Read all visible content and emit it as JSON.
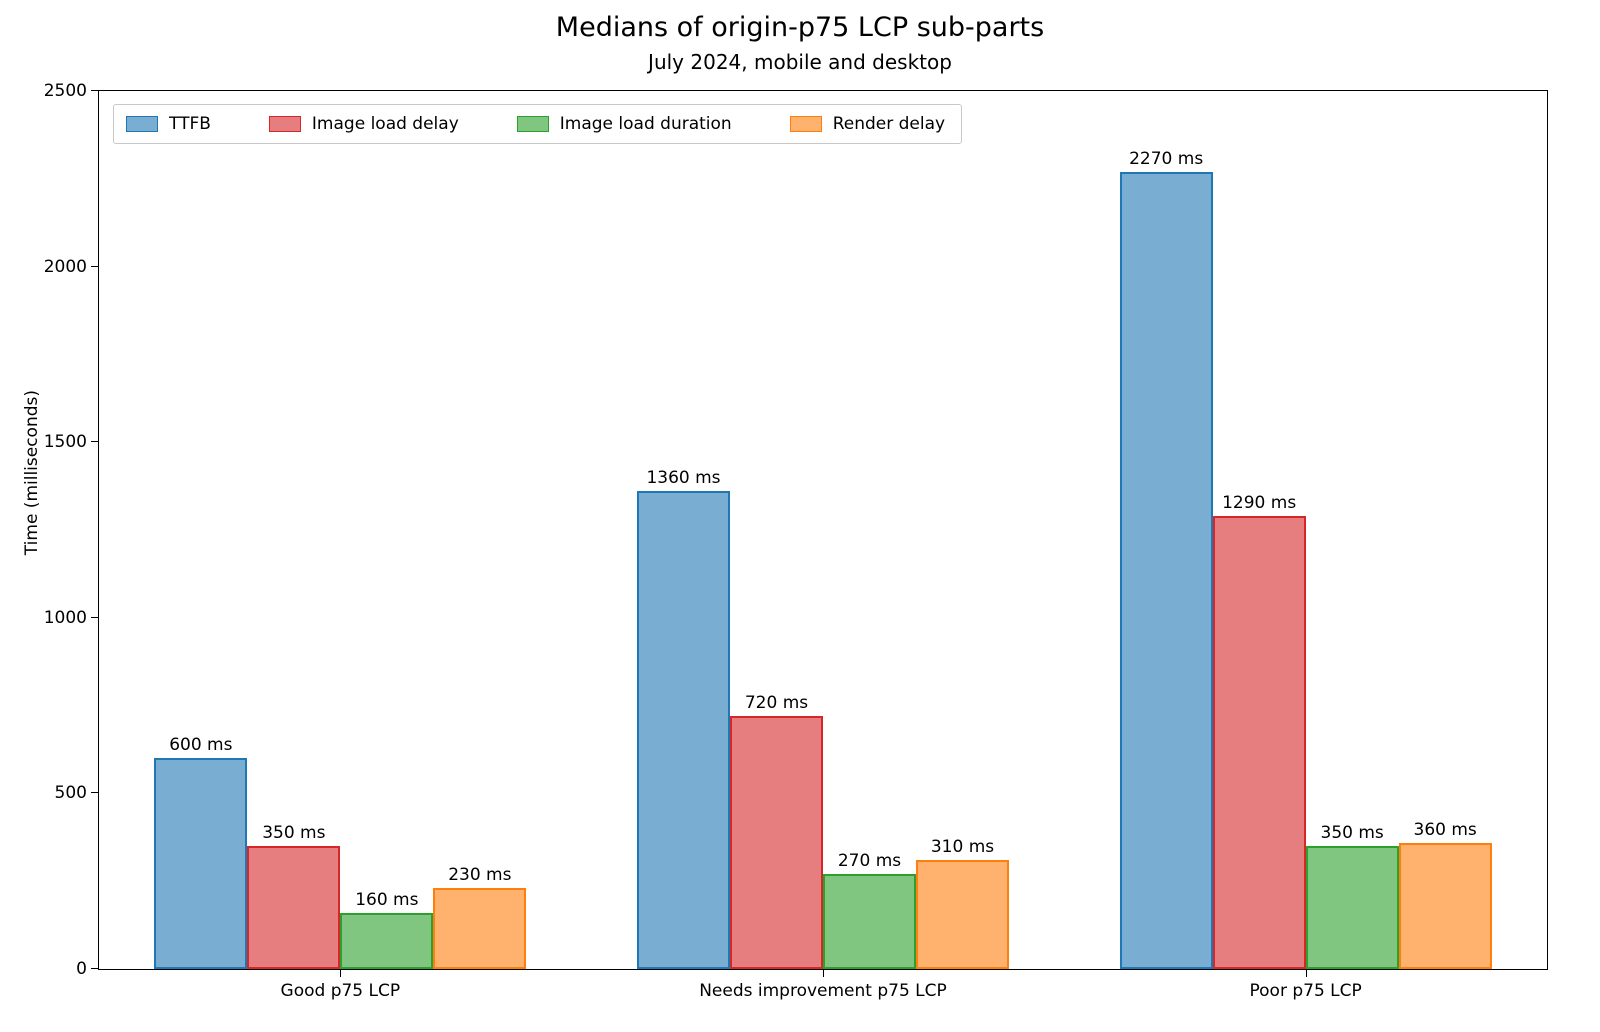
{
  "chart_data": {
    "type": "bar",
    "title": "Medians of origin-p75 LCP sub-parts",
    "subtitle": "July 2024, mobile and desktop",
    "ylabel": "Time (milliseconds)",
    "xlabel": "",
    "ylim": [
      0,
      2500
    ],
    "yticks": [
      0,
      500,
      1000,
      1500,
      2000,
      2500
    ],
    "grid": false,
    "legend_position": "upper left",
    "value_label_suffix": " ms",
    "categories": [
      "Good p75 LCP",
      "Needs improvement p75 LCP",
      "Poor p75 LCP"
    ],
    "series": [
      {
        "name": "TTFB",
        "fill": "#79add2",
        "edge": "#1f77b4",
        "values": [
          600,
          1360,
          2270
        ]
      },
      {
        "name": "Image load delay",
        "fill": "#e67d7e",
        "edge": "#d62728",
        "values": [
          350,
          720,
          1290
        ]
      },
      {
        "name": "Image load duration",
        "fill": "#80c680",
        "edge": "#2ca02c",
        "values": [
          160,
          270,
          350
        ]
      },
      {
        "name": "Render delay",
        "fill": "#ffb26e",
        "edge": "#ff7f0e",
        "values": [
          230,
          310,
          360
        ]
      }
    ]
  }
}
